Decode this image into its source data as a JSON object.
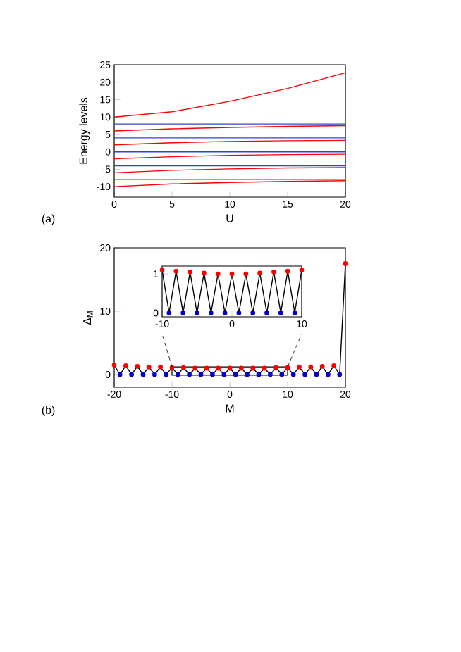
{
  "chart_data": [
    {
      "type": "line",
      "xlabel": "U",
      "ylabel": "Energy levels",
      "annotations": [
        "(a)"
      ],
      "x": [
        0,
        5,
        10,
        15,
        20
      ],
      "xlim": [
        0,
        20
      ],
      "ylim": [
        -13,
        25
      ],
      "xticks": [
        0,
        5,
        10,
        15,
        20
      ],
      "yticks": [
        -10,
        -5,
        0,
        5,
        10,
        15,
        20,
        25
      ],
      "series": [
        {
          "color": "#3344cc",
          "values": [
            8,
            8,
            8,
            8,
            8
          ]
        },
        {
          "color": "#3344cc",
          "values": [
            4,
            4,
            4,
            4,
            4
          ]
        },
        {
          "color": "#3344cc",
          "values": [
            0,
            0,
            0,
            0,
            0
          ]
        },
        {
          "color": "#3344cc",
          "values": [
            -4,
            -4,
            -4,
            -4,
            -4
          ]
        },
        {
          "color": "#3344cc",
          "values": [
            -8,
            -8,
            -8,
            -8,
            -8
          ]
        },
        {
          "color": "#ff0000",
          "values": [
            10,
            11.5,
            14.5,
            18.2,
            22.7
          ]
        },
        {
          "color": "#ff0000",
          "values": [
            6,
            6.6,
            7,
            7.3,
            7.5
          ]
        },
        {
          "color": "#ff0000",
          "values": [
            2,
            2.6,
            3,
            3.2,
            3.3
          ]
        },
        {
          "color": "#ff0000",
          "values": [
            -2,
            -1.4,
            -1,
            -0.8,
            -0.7
          ]
        },
        {
          "color": "#ff0000",
          "values": [
            -6,
            -5.3,
            -4.9,
            -4.6,
            -4.5
          ]
        },
        {
          "color": "#ff0000",
          "values": [
            -10,
            -9.2,
            -8.8,
            -8.5,
            -8.3
          ]
        }
      ]
    },
    {
      "type": "line",
      "xlabel": "M",
      "ylabel": "Δ$_{M}$",
      "annotations": [
        "(b)"
      ],
      "xlim": [
        -20,
        20
      ],
      "ylim": [
        -2,
        20
      ],
      "xticks": [
        -20,
        -10,
        0,
        10,
        20
      ],
      "yticks": [
        0,
        10,
        20
      ],
      "series": [
        {
          "color": "#000000",
          "x": [
            -20,
            -19,
            -18,
            -17,
            -16,
            -15,
            -14,
            -13,
            -12,
            -11,
            -10,
            -9,
            -8,
            -7,
            -6,
            -5,
            -4,
            -3,
            -2,
            -1,
            0,
            1,
            2,
            3,
            4,
            5,
            6,
            7,
            8,
            9,
            10,
            11,
            12,
            13,
            14,
            15,
            16,
            17,
            18,
            19,
            20
          ],
          "values": [
            1.5,
            0,
            1.4,
            0,
            1.3,
            0,
            1.2,
            0,
            1.2,
            0,
            1.1,
            0,
            1.1,
            0,
            1.0,
            0,
            1.0,
            0,
            1.0,
            0,
            1.0,
            0,
            1.0,
            0,
            1.0,
            0,
            1.0,
            0,
            1.1,
            0,
            1.1,
            0,
            1.2,
            0,
            1.2,
            0,
            1.3,
            0,
            1.4,
            0,
            17.5
          ]
        },
        {
          "type": "scatter",
          "color": "#ff0000",
          "marker": "circle",
          "x": [
            -20,
            -18,
            -16,
            -14,
            -12,
            -10,
            -8,
            -6,
            -4,
            -2,
            0,
            2,
            4,
            6,
            8,
            10,
            12,
            14,
            16,
            18,
            20
          ],
          "values": [
            1.5,
            1.4,
            1.3,
            1.2,
            1.2,
            1.1,
            1.1,
            1.0,
            1.0,
            1.0,
            1.0,
            1.0,
            1.0,
            1.0,
            1.1,
            1.1,
            1.2,
            1.2,
            1.3,
            1.4,
            17.5
          ]
        },
        {
          "type": "scatter",
          "color": "#0000cc",
          "marker": "circle",
          "x": [
            -19,
            -17,
            -15,
            -13,
            -11,
            -9,
            -7,
            -5,
            -3,
            -1,
            1,
            3,
            5,
            7,
            9,
            11,
            13,
            15,
            17,
            19
          ],
          "values": [
            0,
            0,
            0,
            0,
            0,
            0,
            0,
            0,
            0,
            0,
            0,
            0,
            0,
            0,
            0,
            0,
            0,
            0,
            0,
            0
          ]
        }
      ]
    },
    {
      "type": "line",
      "xlim": [
        -10,
        10
      ],
      "ylim": [
        -0.1,
        1.2
      ],
      "xticks": [
        -10,
        0,
        10
      ],
      "yticks": [
        0,
        1
      ],
      "series": [
        {
          "color": "#000000",
          "x": [
            -10,
            -9,
            -8,
            -7,
            -6,
            -5,
            -4,
            -3,
            -2,
            -1,
            0,
            1,
            2,
            3,
            4,
            5,
            6,
            7,
            8,
            9,
            10
          ],
          "values": [
            1.1,
            0,
            1.07,
            0,
            1.05,
            0,
            1.02,
            0,
            1.0,
            0,
            1.0,
            0,
            1.0,
            0,
            1.02,
            0,
            1.05,
            0,
            1.07,
            0,
            1.1
          ]
        },
        {
          "type": "scatter",
          "color": "#ff0000",
          "marker": "circle",
          "x": [
            -10,
            -8,
            -6,
            -4,
            -2,
            0,
            2,
            4,
            6,
            8,
            10
          ],
          "values": [
            1.1,
            1.07,
            1.05,
            1.02,
            1.0,
            1.0,
            1.0,
            1.02,
            1.05,
            1.07,
            1.1
          ]
        },
        {
          "type": "scatter",
          "color": "#0000cc",
          "marker": "circle",
          "x": [
            -9,
            -7,
            -5,
            -3,
            -1,
            1,
            3,
            5,
            7,
            9
          ],
          "values": [
            0,
            0,
            0,
            0,
            0,
            0,
            0,
            0,
            0,
            0
          ]
        }
      ]
    }
  ]
}
